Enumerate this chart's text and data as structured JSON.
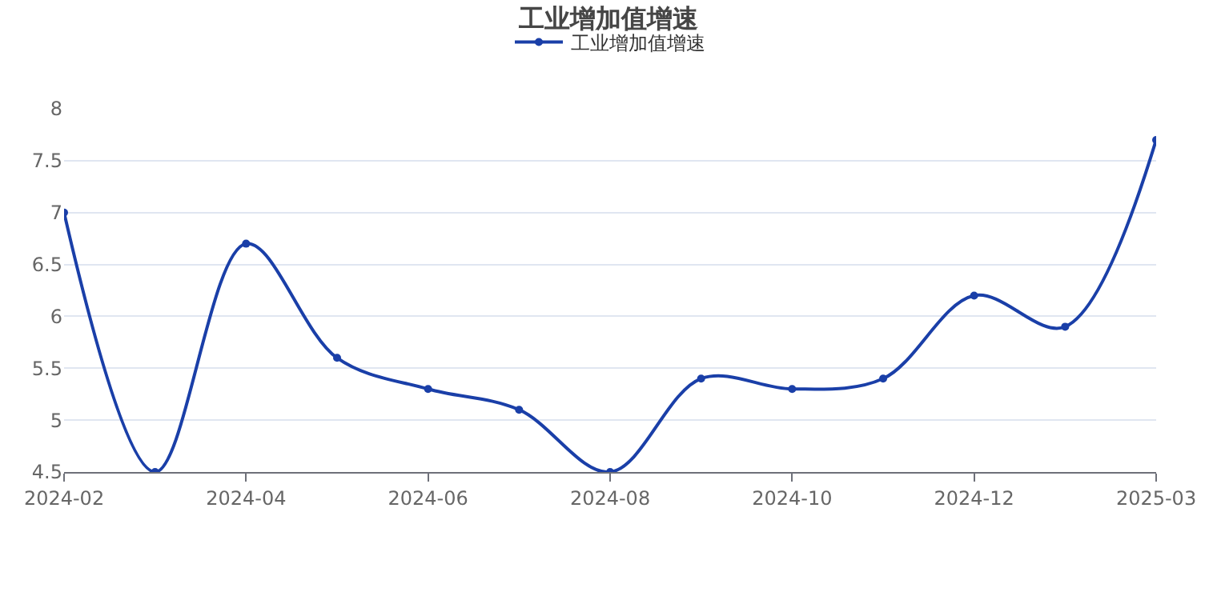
{
  "chart_data": {
    "type": "line",
    "title": "工业增加值增速",
    "categories": [
      "2024-02",
      null,
      "2024-04",
      null,
      "2024-06",
      null,
      "2024-08",
      null,
      "2024-10",
      null,
      "2024-12",
      null,
      "2025-03"
    ],
    "series": [
      {
        "name": "工业增加值增速",
        "color": "#1a3fa8",
        "values": [
          7.0,
          4.5,
          6.7,
          5.6,
          5.3,
          5.1,
          4.5,
          5.4,
          5.3,
          5.4,
          6.2,
          5.9,
          7.7
        ]
      }
    ],
    "ylim": [
      4.5,
      8
    ],
    "yticks": [
      4.5,
      5,
      5.5,
      6,
      6.5,
      7,
      7.5,
      8
    ],
    "grid": "y",
    "legend": "top",
    "marker": "circle",
    "line_style": "solid"
  }
}
